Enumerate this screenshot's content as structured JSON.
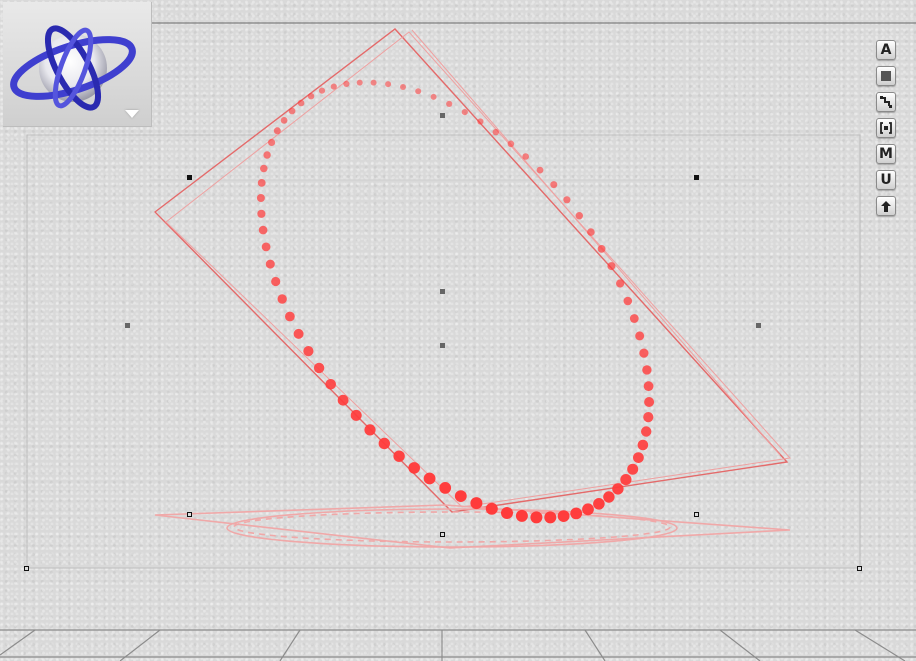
{
  "viewport": {
    "camera_trackball": {
      "icon": "trackball-gizmo-icon",
      "menu_icon": "triangle-down-icon"
    },
    "toolbar": {
      "buttons": [
        {
          "id": "a",
          "label": "A",
          "icon": "letter-a-icon"
        },
        {
          "id": "fill",
          "label": "",
          "icon": "filled-square-icon"
        },
        {
          "id": "steps",
          "label": "",
          "icon": "steps-icon"
        },
        {
          "id": "frame",
          "label": "",
          "icon": "bracket-frame-icon"
        },
        {
          "id": "m",
          "label": "M",
          "icon": "letter-m-icon"
        },
        {
          "id": "u",
          "label": "U",
          "icon": "letter-u-icon"
        },
        {
          "id": "up",
          "label": "",
          "icon": "up-arrow-icon"
        }
      ]
    },
    "colors": {
      "background": "#d9d9d9",
      "curve_red": "#ff3b3b",
      "frame_line": "#e46a6a",
      "shadow_line": "#f0a8a8",
      "trackball_ring": "#3f3fcf",
      "handle": "#111111",
      "floor_grid": "#8c8c8c"
    }
  }
}
